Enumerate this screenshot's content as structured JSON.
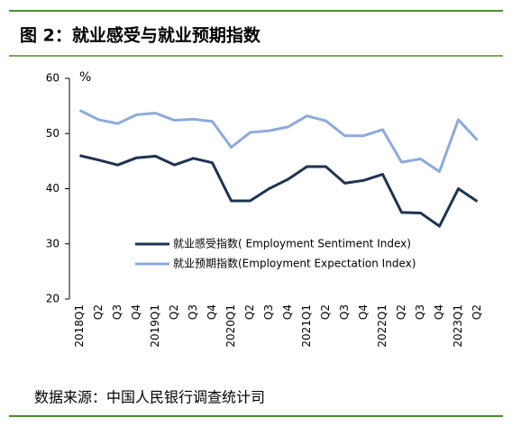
{
  "title": "图 2：就业感受与就业预期指数",
  "source": "数据来源：中国人民银行调查统计司",
  "chart_data": {
    "type": "line",
    "ylabel": "%",
    "categories": [
      "2018Q1",
      "Q2",
      "Q3",
      "Q4",
      "2019Q1",
      "Q2",
      "Q3",
      "Q4",
      "2020Q1",
      "Q2",
      "Q3",
      "Q4",
      "2021Q1",
      "Q2",
      "Q3",
      "Q4",
      "2022Q1",
      "Q2",
      "Q3",
      "Q4",
      "2023Q1",
      "Q2"
    ],
    "series": [
      {
        "name": "就业感受指数( Employment Sentiment Index)",
        "color": "#1f3350",
        "values": [
          46,
          45.2,
          44.3,
          45.6,
          45.9,
          44.3,
          45.5,
          44.7,
          37.8,
          37.8,
          40,
          41.7,
          44,
          44,
          41,
          41.5,
          42.6,
          35.7,
          35.6,
          33.2,
          40,
          37.7
        ]
      },
      {
        "name": "就业预期指数(Employment Expectation Index)",
        "color": "#8eaadb",
        "values": [
          54.2,
          52.5,
          51.8,
          53.4,
          53.7,
          52.4,
          52.6,
          52.2,
          47.5,
          50.2,
          50.5,
          51.2,
          53.2,
          52.3,
          49.6,
          49.6,
          50.7,
          44.8,
          45.4,
          43.1,
          52.5,
          48.8
        ]
      }
    ],
    "ylim": [
      20,
      60
    ],
    "yticks": [
      20,
      30,
      40,
      50,
      60
    ],
    "grid": false
  }
}
